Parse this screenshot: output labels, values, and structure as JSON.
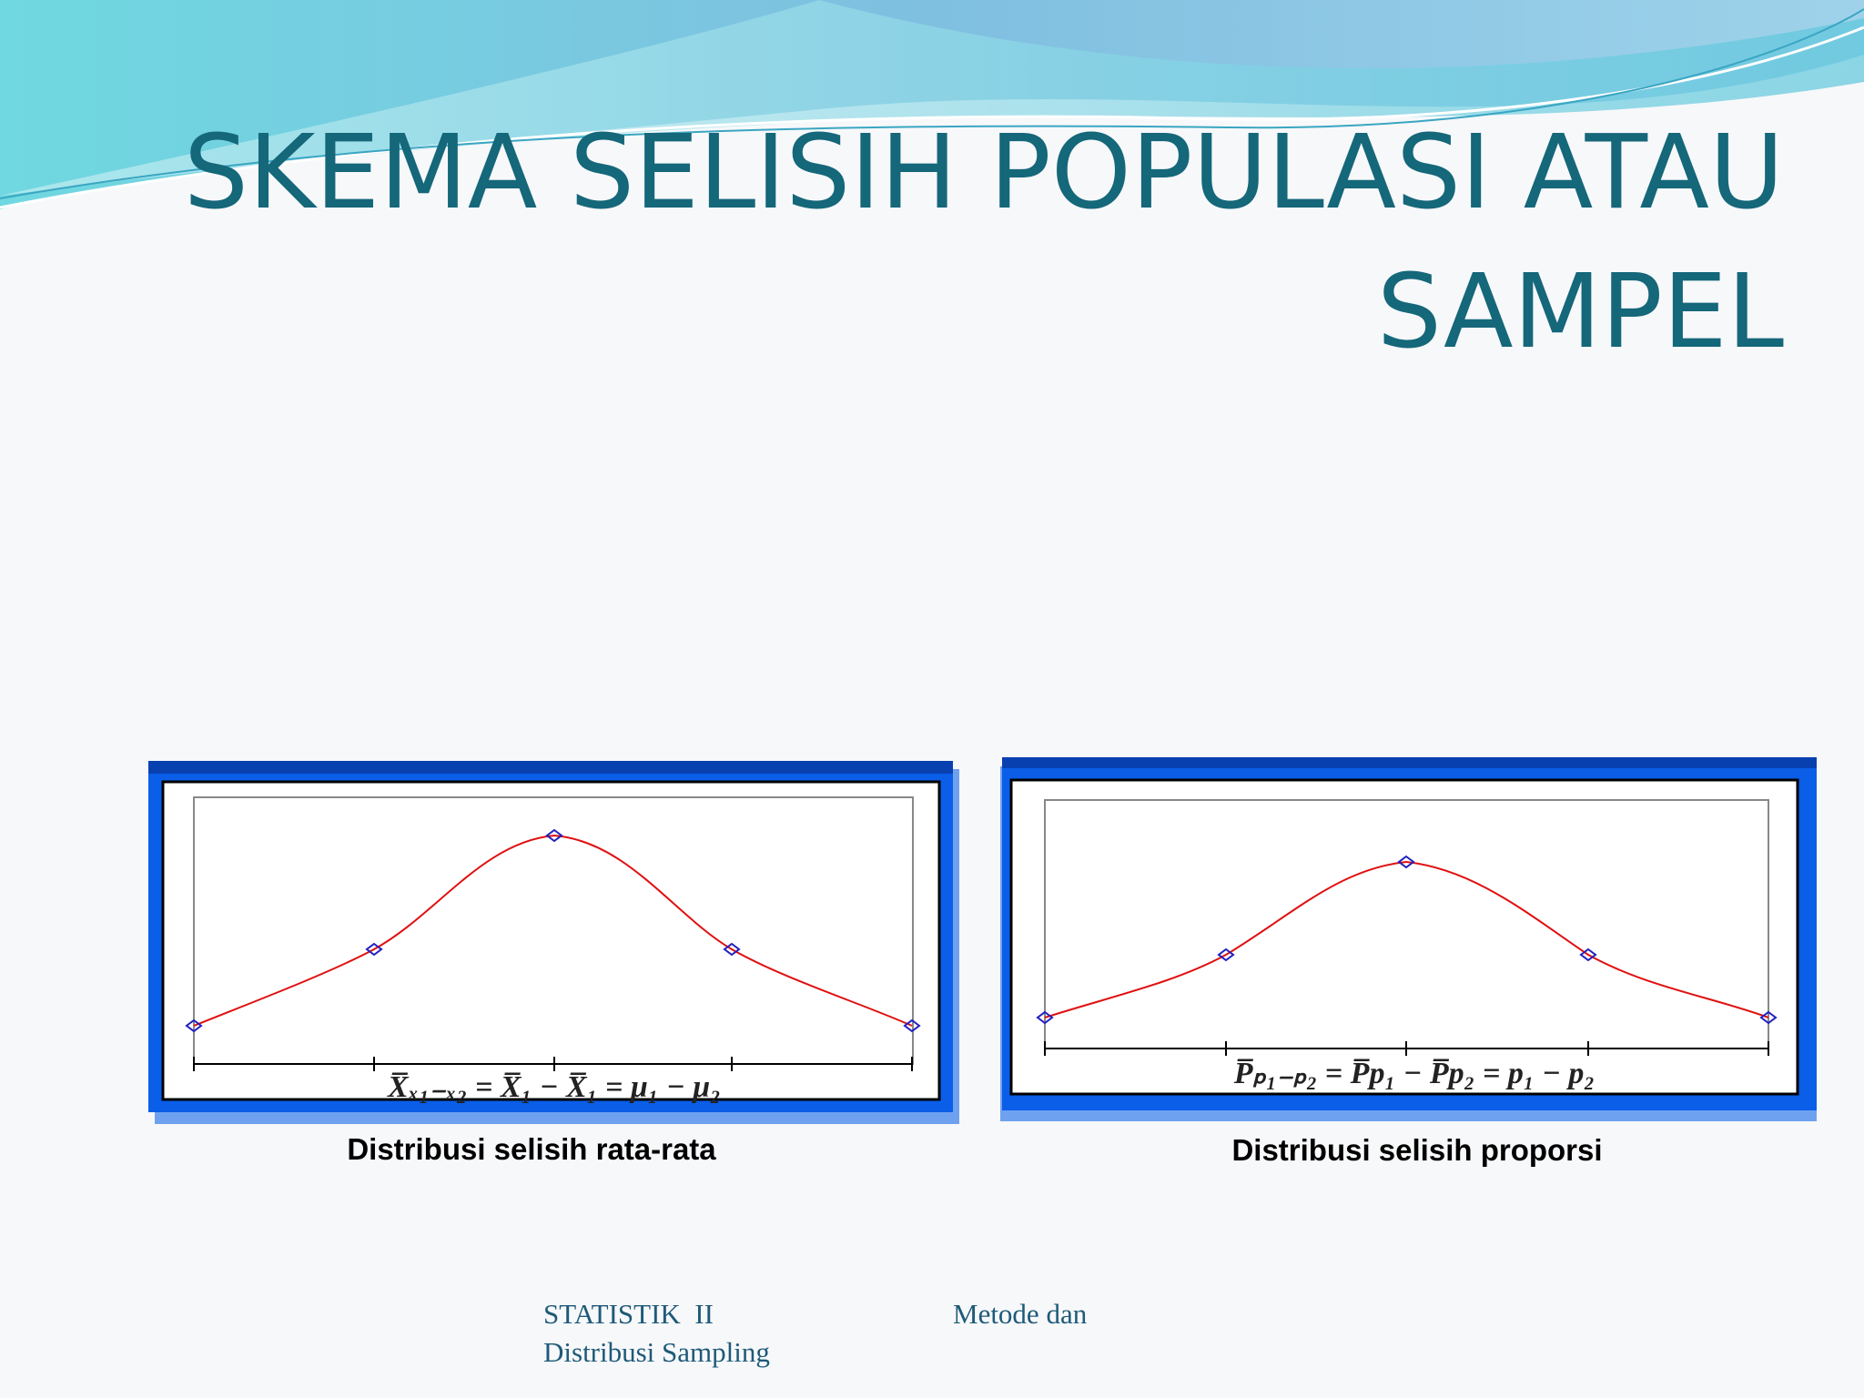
{
  "title": {
    "lines": [
      "SKEMA SELISIH POPULASI ATAU",
      "SAMPEL"
    ]
  },
  "panels": [
    {
      "formula": "X̅ₓ₁₋ₓ₂ = X̅₁ − X̅₁ = μ₁ − μ₂",
      "caption": "Distribusi selisih rata-rata"
    },
    {
      "formula": "P̅ₚ₁₋ₚ₂ = P̅p₁ − P̅p₂ = p₁ − p₂",
      "caption": "Distribusi selisih proporsi"
    }
  ],
  "footer": {
    "course": "STATISTIK  II",
    "topic_start": "Metode dan",
    "topic_end": "Distribusi Sampling"
  }
}
